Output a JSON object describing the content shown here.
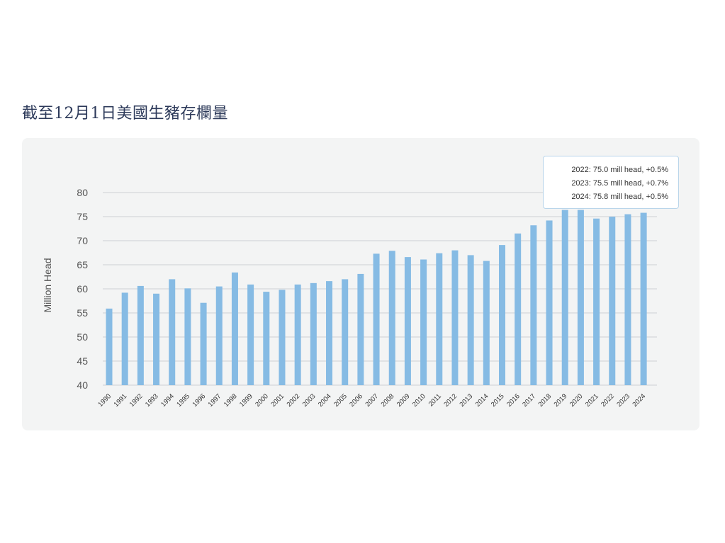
{
  "page": {
    "title": "截至12月1日美國生豬存欄量"
  },
  "colors": {
    "bar": "#86bbe4",
    "grid": "#cdd1d4",
    "axis_text": "#555555",
    "card_bg": "#f3f4f4"
  },
  "tooltip": {
    "lines": [
      "2022: 75.0 mill head, +0.5%",
      "2023: 75.5 mill head, +0.7%",
      "2024: 75.8 mill head, +0.5%"
    ]
  },
  "chart_data": {
    "type": "bar",
    "title": "截至12月1日美國生豬存欄量",
    "ylabel": "Million Head",
    "xlabel": "",
    "ylim": [
      40,
      80
    ],
    "yticks": [
      40,
      45,
      50,
      55,
      60,
      65,
      70,
      75,
      80
    ],
    "grid": true,
    "categories": [
      "1990",
      "1991",
      "1992",
      "1993",
      "1994",
      "1995",
      "1996",
      "1997",
      "1998",
      "1999",
      "2000",
      "2001",
      "2002",
      "2003",
      "2004",
      "2005",
      "2006",
      "2007",
      "2008",
      "2009",
      "2010",
      "2011",
      "2012",
      "2013",
      "2014",
      "2015",
      "2016",
      "2017",
      "2018",
      "2019",
      "2020",
      "2021",
      "2022",
      "2023",
      "2024"
    ],
    "values": [
      55.9,
      59.2,
      60.6,
      59.0,
      62.0,
      60.1,
      57.1,
      60.5,
      63.4,
      60.9,
      59.4,
      59.8,
      60.9,
      61.2,
      61.6,
      62.0,
      63.1,
      67.3,
      67.9,
      66.6,
      66.1,
      67.4,
      68.0,
      67.0,
      65.8,
      69.1,
      71.5,
      73.2,
      74.2,
      76.4,
      76.4,
      74.6,
      75.0,
      75.5,
      75.8
    ]
  }
}
